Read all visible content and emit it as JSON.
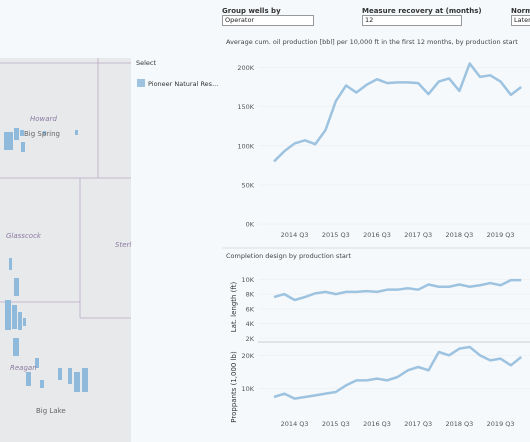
{
  "controls": {
    "group_label": "Group wells by",
    "group_value": "Operator",
    "recovery_label": "Measure recovery at (months)",
    "recovery_value": "12",
    "norm_label": "Norma",
    "norm_value": "Laters"
  },
  "map": {
    "labels": [
      "Howard",
      "Big Spring",
      "Glasscock",
      "Sterl",
      "Reagan",
      "Big Lake"
    ]
  },
  "legend": {
    "title": "Select",
    "item": "Pioneer Natural Res..."
  },
  "chart_data": [
    {
      "type": "line",
      "title": "Average cum. oil production [bbl] per 10,000 ft in the first 12 months, by production start",
      "categories": [
        null,
        null,
        "2014 Q3",
        null,
        null,
        null,
        "2015 Q3",
        null,
        null,
        null,
        "2016 Q3",
        null,
        null,
        null,
        "2017 Q3",
        null,
        null,
        null,
        "2018 Q3",
        null,
        null,
        null,
        "2019 Q3",
        null,
        null
      ],
      "values": [
        80000,
        93000,
        103000,
        107000,
        102000,
        120000,
        157000,
        177000,
        168000,
        178000,
        185000,
        180000,
        181000,
        181000,
        180000,
        166000,
        182000,
        186000,
        170000,
        205000,
        188000,
        190000,
        182000,
        165000,
        175000
      ],
      "color": "#9dc3e0",
      "ylim": [
        -5000,
        207000
      ],
      "yticks": [
        {
          "value": 0,
          "label": "0K"
        },
        {
          "value": 50000,
          "label": "50K"
        },
        {
          "value": 100000,
          "label": "100K"
        },
        {
          "value": 150000,
          "label": "150K"
        },
        {
          "value": 200000,
          "label": "200K"
        }
      ],
      "grid": true
    },
    {
      "type": "line",
      "title": "Completion design by production start",
      "y_label": "Lat. length (ft)",
      "values": [
        7600,
        8000,
        7200,
        7600,
        8100,
        8300,
        8000,
        8300,
        8300,
        8400,
        8300,
        8600,
        8600,
        8800,
        8600,
        9300,
        9000,
        9000,
        9300,
        9000,
        9200,
        9500,
        9200,
        9900,
        9900
      ],
      "color": "#9dc3e0",
      "ylim": [
        1500,
        11000
      ],
      "yticks": [
        {
          "value": 2000,
          "label": "2K"
        },
        {
          "value": 4000,
          "label": "4K"
        },
        {
          "value": 6000,
          "label": "6K"
        },
        {
          "value": 8000,
          "label": "8K"
        },
        {
          "value": 10000,
          "label": "10K"
        }
      ],
      "grid": true
    },
    {
      "type": "line",
      "y_label": "Proppants (1,000 lb)",
      "categories": [
        null,
        null,
        "2014 Q3",
        null,
        null,
        null,
        "2015 Q3",
        null,
        null,
        null,
        "2016 Q3",
        null,
        null,
        null,
        "2017 Q3",
        null,
        null,
        null,
        "2018 Q3",
        null,
        null,
        null,
        "2019 Q3",
        null,
        null
      ],
      "values": [
        7500,
        8500,
        7000,
        7500,
        8000,
        8500,
        9000,
        11000,
        12500,
        12500,
        13000,
        12500,
        13500,
        15500,
        16500,
        15500,
        21000,
        20000,
        22000,
        22500,
        20000,
        18500,
        19000,
        17000,
        19500
      ],
      "color": "#9dc3e0",
      "ylim": [
        -3000,
        24000
      ],
      "yticks": [
        {
          "value": 10000,
          "label": "10K"
        },
        {
          "value": 20000,
          "label": "20K"
        }
      ],
      "grid": true
    }
  ]
}
